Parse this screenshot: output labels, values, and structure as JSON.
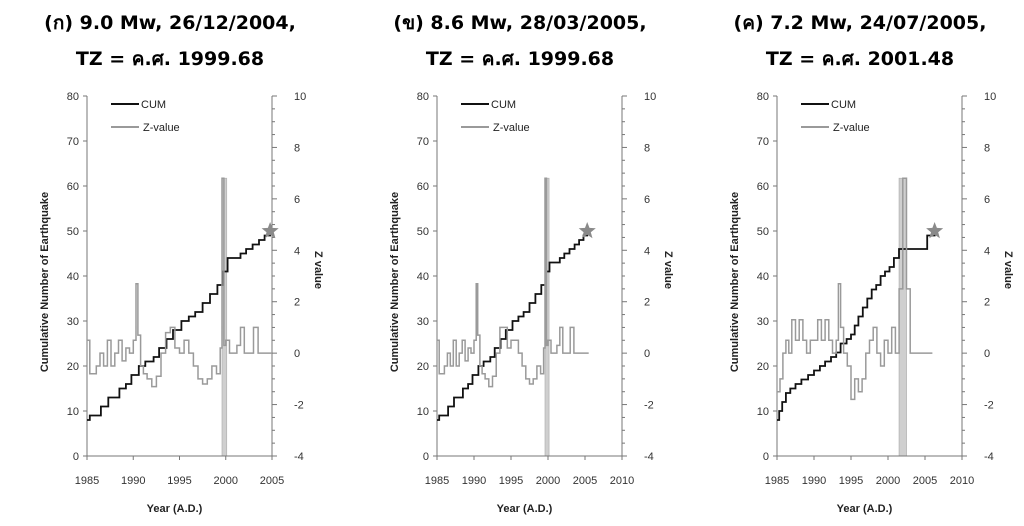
{
  "panels": [
    {
      "title_line1": "(ก) 9.0 Mw, 26/12/2004,",
      "title_line2": "TZ = ค.ศ. 1999.68"
    },
    {
      "title_line1": "(ข) 8.6 Mw, 28/03/2005,",
      "title_line2": "TZ = ค.ศ. 1999.68"
    },
    {
      "title_line1": "(ค) 7.2 Mw, 24/07/2005,",
      "title_line2": "TZ = ค.ศ. 2001.48"
    }
  ],
  "chart_data": [
    {
      "type": "line",
      "title": "(ก) 9.0 Mw, 26/12/2004, TZ = ค.ศ. 1999.68",
      "xlabel": "Year (A.D.)",
      "ylabel": "Cumulative Number of Earthquake",
      "y2label": "Z value",
      "xlim": [
        1985,
        2005
      ],
      "xticks": [
        1985,
        1990,
        1995,
        2000,
        2005
      ],
      "ylim": [
        0,
        80
      ],
      "yticks": [
        0,
        10,
        20,
        30,
        40,
        50,
        60,
        70,
        80
      ],
      "y2lim": [
        -4,
        10
      ],
      "y2ticks": [
        -4,
        -2,
        0,
        2,
        4,
        6,
        8,
        10
      ],
      "legend": [
        "CUM",
        "Z-value"
      ],
      "legend_position": "top-left",
      "tz_band": [
        1999.6,
        2000.1
      ],
      "event_star": {
        "x": 2004.8,
        "y": 50
      },
      "series": [
        {
          "name": "CUM",
          "axis": "left",
          "color": "#111111",
          "x": [
            1985,
            1985.3,
            1986.5,
            1987.3,
            1988.5,
            1989.2,
            1989.8,
            1990.6,
            1991.3,
            1992.2,
            1992.8,
            1993.6,
            1994.3,
            1995.2,
            1996.0,
            1996.7,
            1997.5,
            1998.3,
            1999.1,
            1999.68,
            2000.2,
            2001.6,
            2002.2,
            2002.9,
            2003.6,
            2004.2,
            2004.8
          ],
          "y": [
            8,
            9,
            11,
            13,
            15,
            16,
            18,
            20,
            21,
            22,
            24,
            26,
            28,
            30,
            31,
            32,
            34,
            36,
            38,
            41,
            44,
            45,
            46,
            47,
            48,
            49,
            50
          ]
        },
        {
          "name": "Z-value",
          "axis": "right",
          "color": "#9a9a9a",
          "x": [
            1985,
            1985.3,
            1985.5,
            1986.0,
            1986.4,
            1986.8,
            1987.2,
            1987.6,
            1988.0,
            1988.4,
            1988.8,
            1989.2,
            1989.6,
            1990.0,
            1990.3,
            1990.5,
            1990.8,
            1991.1,
            1991.5,
            1992.0,
            1992.5,
            1993.0,
            1993.5,
            1994.0,
            1994.5,
            1995.0,
            1995.5,
            1996.0,
            1996.5,
            1997.0,
            1997.5,
            1998.0,
            1998.5,
            1999.0,
            1999.4,
            1999.6,
            1999.8,
            2000.0,
            2000.4,
            2000.8,
            2001.2,
            2001.6,
            2002.0,
            2002.5,
            2003.0,
            2003.5,
            2004.0,
            2005.0
          ],
          "y": [
            0.5,
            -0.8,
            -0.8,
            -0.5,
            0.0,
            -0.5,
            0.5,
            -0.5,
            0.0,
            0.5,
            -0.3,
            0.2,
            0.0,
            0.5,
            2.7,
            0.7,
            -0.5,
            -0.8,
            -1.0,
            -1.3,
            -0.9,
            0.0,
            0.8,
            1.0,
            0.2,
            0.0,
            0.5,
            0.0,
            -0.5,
            -1.0,
            -1.2,
            -1.0,
            -0.5,
            -0.8,
            0.2,
            6.8,
            0.3,
            0.5,
            0.0,
            0.0,
            0.3,
            1.0,
            0.0,
            0.0,
            1.0,
            0.0,
            0.0,
            0.0
          ]
        }
      ]
    },
    {
      "type": "line",
      "title": "(ข) 8.6 Mw, 28/03/2005, TZ = ค.ศ. 1999.68",
      "xlabel": "Year (A.D.)",
      "ylabel": "Cumulative Number of Earthquake",
      "y2label": "Z value",
      "xlim": [
        1985,
        2010
      ],
      "xticks": [
        1985,
        1990,
        1995,
        2000,
        2005,
        2010
      ],
      "ylim": [
        0,
        80
      ],
      "yticks": [
        0,
        10,
        20,
        30,
        40,
        50,
        60,
        70,
        80
      ],
      "y2lim": [
        -4,
        10
      ],
      "y2ticks": [
        -4,
        -2,
        0,
        2,
        4,
        6,
        8,
        10
      ],
      "legend": [
        "CUM",
        "Z-value"
      ],
      "legend_position": "top-left",
      "tz_band": [
        1999.6,
        2000.1
      ],
      "event_star": {
        "x": 2005.3,
        "y": 50
      },
      "series": [
        {
          "name": "CUM",
          "axis": "left",
          "color": "#111111",
          "x": [
            1985,
            1985.3,
            1986.5,
            1987.3,
            1988.5,
            1989.2,
            1989.8,
            1990.6,
            1991.3,
            1992.2,
            1992.8,
            1993.6,
            1994.3,
            1995.2,
            1996.0,
            1996.7,
            1997.5,
            1998.3,
            1999.1,
            1999.68,
            2000.2,
            2001.6,
            2002.2,
            2002.9,
            2003.6,
            2004.2,
            2004.8,
            2005.3
          ],
          "y": [
            8,
            9,
            11,
            13,
            15,
            16,
            18,
            20,
            21,
            22,
            24,
            26,
            28,
            30,
            31,
            32,
            34,
            36,
            38,
            41,
            43,
            44,
            45,
            46,
            47,
            48,
            49,
            50
          ]
        },
        {
          "name": "Z-value",
          "axis": "right",
          "color": "#9a9a9a",
          "x": [
            1985,
            1985.3,
            1985.5,
            1986.0,
            1986.4,
            1986.8,
            1987.2,
            1987.6,
            1988.0,
            1988.4,
            1988.8,
            1989.2,
            1989.6,
            1990.0,
            1990.3,
            1990.5,
            1990.8,
            1991.1,
            1991.5,
            1992.0,
            1992.5,
            1993.0,
            1993.5,
            1994.0,
            1994.5,
            1995.0,
            1995.5,
            1996.0,
            1996.5,
            1997.0,
            1997.5,
            1998.0,
            1998.5,
            1999.0,
            1999.4,
            1999.6,
            1999.8,
            2000.0,
            2000.4,
            2000.8,
            2001.2,
            2001.6,
            2002.0,
            2002.5,
            2003.0,
            2003.5,
            2004.0,
            2005.5
          ],
          "y": [
            0.5,
            -0.8,
            -0.8,
            -0.5,
            0.0,
            -0.5,
            0.5,
            -0.5,
            0.0,
            0.5,
            -0.3,
            0.2,
            0.0,
            0.5,
            2.7,
            0.7,
            -0.5,
            -0.8,
            -1.0,
            -1.3,
            -0.9,
            0.0,
            1.0,
            1.0,
            0.2,
            0.5,
            0.5,
            0.0,
            -0.5,
            -1.0,
            -1.2,
            -1.0,
            -0.5,
            -0.8,
            0.2,
            6.8,
            0.3,
            0.5,
            0.0,
            0.0,
            0.3,
            1.0,
            0.0,
            0.0,
            1.0,
            0.0,
            0.0,
            0.0
          ]
        }
      ]
    },
    {
      "type": "line",
      "title": "(ค) 7.2 Mw, 24/07/2005, TZ = ค.ศ. 2001.48",
      "xlabel": "Year (A.D.)",
      "ylabel": "Cumulative Number of Earthquake",
      "y2label": "Z value",
      "xlim": [
        1985,
        2010
      ],
      "xticks": [
        1985,
        1990,
        1995,
        2000,
        2005,
        2010
      ],
      "ylim": [
        0,
        80
      ],
      "yticks": [
        0,
        10,
        20,
        30,
        40,
        50,
        60,
        70,
        80
      ],
      "y2lim": [
        -4,
        10
      ],
      "y2ticks": [
        -4,
        -2,
        0,
        2,
        4,
        6,
        8,
        10
      ],
      "legend": [
        "CUM",
        "Z-value"
      ],
      "legend_position": "top-left",
      "tz_band": [
        2001.5,
        2002.5
      ],
      "event_star": {
        "x": 2006.3,
        "y": 50
      },
      "series": [
        {
          "name": "CUM",
          "axis": "left",
          "color": "#111111",
          "x": [
            1985,
            1985.3,
            1985.7,
            1986.2,
            1986.8,
            1987.5,
            1988.3,
            1989.2,
            1990.0,
            1990.8,
            1991.5,
            1992.3,
            1993.0,
            1993.6,
            1994.4,
            1995.0,
            1995.5,
            1996.0,
            1996.6,
            1997.2,
            1997.8,
            1998.4,
            1999.0,
            1999.6,
            2000.2,
            2000.8,
            2001.48,
            2002.0,
            2004.2,
            2005.3,
            2006.3
          ],
          "y": [
            8,
            10,
            12,
            14,
            15,
            16,
            17,
            18,
            19,
            20,
            21,
            22,
            23,
            25,
            26,
            27,
            29,
            31,
            33,
            35,
            37,
            38,
            40,
            41,
            42,
            44,
            46,
            46,
            46,
            49,
            50
          ]
        },
        {
          "name": "Z-value",
          "axis": "right",
          "color": "#9a9a9a",
          "x": [
            1985,
            1985.4,
            1985.8,
            1986.2,
            1986.6,
            1987.0,
            1987.5,
            1988.0,
            1988.5,
            1989.0,
            1989.5,
            1990.0,
            1990.5,
            1991.0,
            1991.5,
            1992.0,
            1992.5,
            1993.0,
            1993.3,
            1993.6,
            1994.0,
            1994.5,
            1995.0,
            1995.5,
            1996.0,
            1996.5,
            1997.0,
            1997.5,
            1998.0,
            1998.5,
            1999.0,
            1999.5,
            2000.0,
            2000.5,
            2001.0,
            2001.5,
            2002.0,
            2002.5,
            2003.0,
            2004.0,
            2006.0
          ],
          "y": [
            -1.5,
            -1.0,
            0.0,
            0.5,
            0.0,
            1.3,
            0.5,
            1.3,
            0.5,
            0.0,
            0.5,
            0.5,
            1.3,
            0.5,
            1.3,
            0.5,
            0.0,
            0.5,
            2.7,
            1.0,
            0.0,
            -0.5,
            -1.8,
            -1.0,
            -1.5,
            -1.0,
            0.0,
            0.5,
            1.0,
            0.0,
            -0.5,
            0.5,
            0.0,
            1.0,
            0.0,
            2.5,
            6.8,
            2.5,
            0.0,
            0.0,
            0.0
          ]
        }
      ]
    }
  ],
  "colors": {
    "cum": "#111111",
    "zvalue": "#9a9a9a",
    "tz_band": "#cfcfcf",
    "star": "#8a8a8a",
    "axis": "#777777"
  }
}
